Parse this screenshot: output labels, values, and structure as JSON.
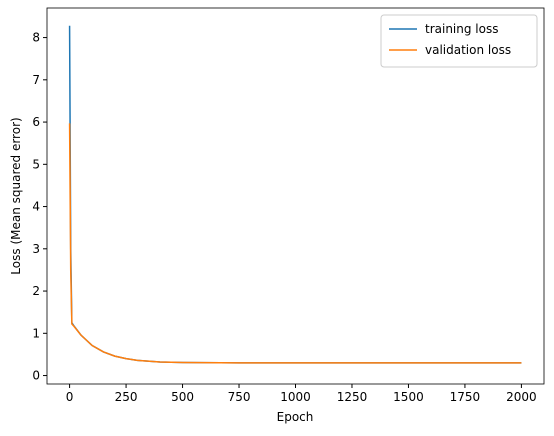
{
  "chart_data": {
    "type": "line",
    "xlabel": "Epoch",
    "ylabel": "Loss (Mean squared error)",
    "x": [
      0,
      5,
      10,
      20,
      50,
      100,
      150,
      200,
      250,
      300,
      400,
      500,
      750,
      1000,
      1250,
      1500,
      1750,
      2000
    ],
    "series": [
      {
        "name": "training loss",
        "color": "#1f77b4",
        "values": [
          8.28,
          3.0,
          1.25,
          1.17,
          0.96,
          0.71,
          0.56,
          0.46,
          0.4,
          0.36,
          0.32,
          0.31,
          0.3,
          0.3,
          0.3,
          0.3,
          0.3,
          0.3
        ]
      },
      {
        "name": "validation loss",
        "color": "#ff7f0e",
        "values": [
          5.97,
          2.5,
          1.22,
          1.16,
          0.96,
          0.71,
          0.56,
          0.46,
          0.4,
          0.36,
          0.32,
          0.31,
          0.3,
          0.3,
          0.3,
          0.3,
          0.3,
          0.3
        ]
      }
    ],
    "xlim": [
      -100,
      2100
    ],
    "ylim": [
      -0.2,
      8.7
    ],
    "xticks": [
      0,
      250,
      500,
      750,
      1000,
      1250,
      1500,
      1750,
      2000
    ],
    "yticks": [
      0,
      1,
      2,
      3,
      4,
      5,
      6,
      7,
      8
    ],
    "legend": "upper right",
    "grid": false
  }
}
